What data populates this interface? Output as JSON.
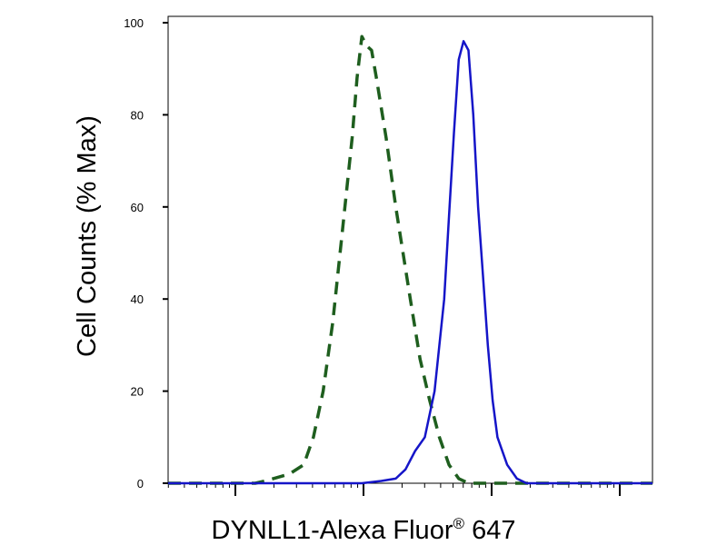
{
  "chart_data": {
    "type": "line",
    "title": "",
    "xlabel": "DYNLL1-Alexa Fluor",
    "xlabel_mark": "®",
    "xlabel_suffix": " 647",
    "ylabel": "Cell Counts (% Max)",
    "x_scale": "log",
    "xlim": [
      0,
      1
    ],
    "ylim": [
      0,
      100
    ],
    "yticks": [
      0,
      20,
      40,
      60,
      80,
      100
    ],
    "ytick_labels": [
      "0",
      "20",
      "40",
      "60",
      "80",
      "100"
    ],
    "grid": false,
    "legend": "none",
    "series": [
      {
        "style": "dashed",
        "color": "#1e5e1e",
        "x": [
          0.0,
          0.1,
          0.18,
          0.2,
          0.25,
          0.28,
          0.3,
          0.32,
          0.34,
          0.36,
          0.38,
          0.39,
          0.4,
          0.41,
          0.42,
          0.43,
          0.45,
          0.47,
          0.5,
          0.52,
          0.54,
          0.56,
          0.58,
          0.6,
          0.62,
          0.64,
          0.66,
          1.0
        ],
        "y": [
          0,
          0,
          0,
          0.5,
          2,
          4,
          10,
          20,
          35,
          55,
          75,
          88,
          97,
          95,
          94,
          88,
          75,
          60,
          40,
          27,
          18,
          10,
          4,
          1,
          0,
          0,
          0,
          0
        ]
      },
      {
        "style": "solid",
        "color": "#1515c8",
        "x": [
          0.0,
          0.3,
          0.4,
          0.44,
          0.47,
          0.49,
          0.51,
          0.53,
          0.55,
          0.57,
          0.58,
          0.59,
          0.6,
          0.61,
          0.62,
          0.63,
          0.64,
          0.65,
          0.66,
          0.67,
          0.68,
          0.7,
          0.72,
          0.74,
          0.76,
          1.0
        ],
        "y": [
          0,
          0,
          0,
          0.5,
          1,
          3,
          7,
          10,
          20,
          40,
          58,
          76,
          92,
          96,
          94,
          80,
          60,
          45,
          30,
          18,
          10,
          4,
          1,
          0,
          0,
          0
        ]
      }
    ]
  }
}
